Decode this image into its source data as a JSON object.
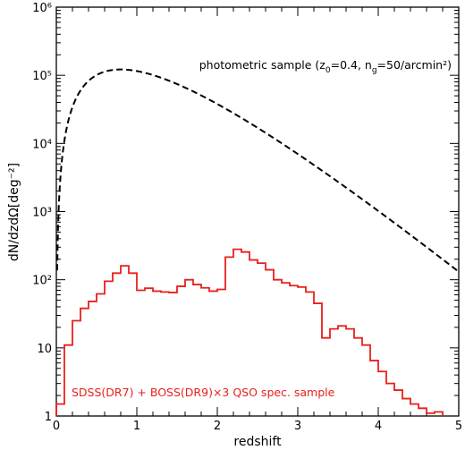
{
  "chart_data": {
    "type": "line",
    "xlabel": "redshift",
    "ylabel": "dN/dzdΩ[deg⁻²]",
    "xlim": [
      0,
      5
    ],
    "ylim": [
      1,
      1000000
    ],
    "yscale": "log",
    "x_ticks": [
      {
        "value": 0,
        "label": "0"
      },
      {
        "value": 1,
        "label": "1"
      },
      {
        "value": 2,
        "label": "2"
      },
      {
        "value": 3,
        "label": "3"
      },
      {
        "value": 4,
        "label": "4"
      },
      {
        "value": 5,
        "label": "5"
      }
    ],
    "y_ticks": [
      {
        "value": 1,
        "label": "1"
      },
      {
        "value": 10,
        "label": "10"
      },
      {
        "value": 100,
        "label": "10²"
      },
      {
        "value": 1000,
        "label": "10³"
      },
      {
        "value": 10000,
        "label": "10⁴"
      },
      {
        "value": 100000,
        "label": "10⁵"
      },
      {
        "value": 1000000,
        "label": "10⁶"
      }
    ],
    "series": [
      {
        "name": "photometric sample (z₀=0.4, n_g=50/arcmin²)",
        "style": "dashed",
        "color": "#000000",
        "model": {
          "form": "z^2 exp(-z/z0)",
          "z0": 0.4,
          "ng_per_arcmin2": 50
        }
      },
      {
        "name": "SDSS(DR7) + BOSS(DR9)×3 QSO spec. sample",
        "style": "step",
        "color": "#e8201c",
        "bin_width": 0.1,
        "bin_starts": [
          0.0,
          0.1,
          0.2,
          0.3,
          0.4,
          0.5,
          0.6,
          0.7,
          0.8,
          0.9,
          1.0,
          1.1,
          1.2,
          1.3,
          1.4,
          1.5,
          1.6,
          1.7,
          1.8,
          1.9,
          2.0,
          2.1,
          2.2,
          2.3,
          2.4,
          2.5,
          2.6,
          2.7,
          2.8,
          2.9,
          3.0,
          3.1,
          3.2,
          3.3,
          3.4,
          3.5,
          3.6,
          3.7,
          3.8,
          3.9,
          4.0,
          4.1,
          4.2,
          4.3,
          4.4,
          4.5,
          4.6,
          4.7
        ],
        "values": [
          1.5,
          11,
          25,
          38,
          48,
          62,
          95,
          125,
          160,
          125,
          70,
          75,
          68,
          66,
          65,
          80,
          100,
          85,
          76,
          68,
          72,
          215,
          280,
          255,
          195,
          175,
          140,
          100,
          90,
          82,
          78,
          66,
          45,
          14,
          19,
          21,
          19,
          14,
          11,
          6.5,
          4.5,
          3.0,
          2.4,
          1.8,
          1.5,
          1.3,
          1.1,
          1.15
        ]
      }
    ],
    "annotations": [
      {
        "text": "photometric sample (z",
        "sub1": "0",
        "mid": "=0.4, n",
        "sub2": "g",
        "end": "=50/arcmin²)",
        "color": "#000000"
      },
      {
        "text": "SDSS(DR7) + BOSS(DR9)×3 QSO spec. sample",
        "color": "#e8201c"
      }
    ]
  }
}
